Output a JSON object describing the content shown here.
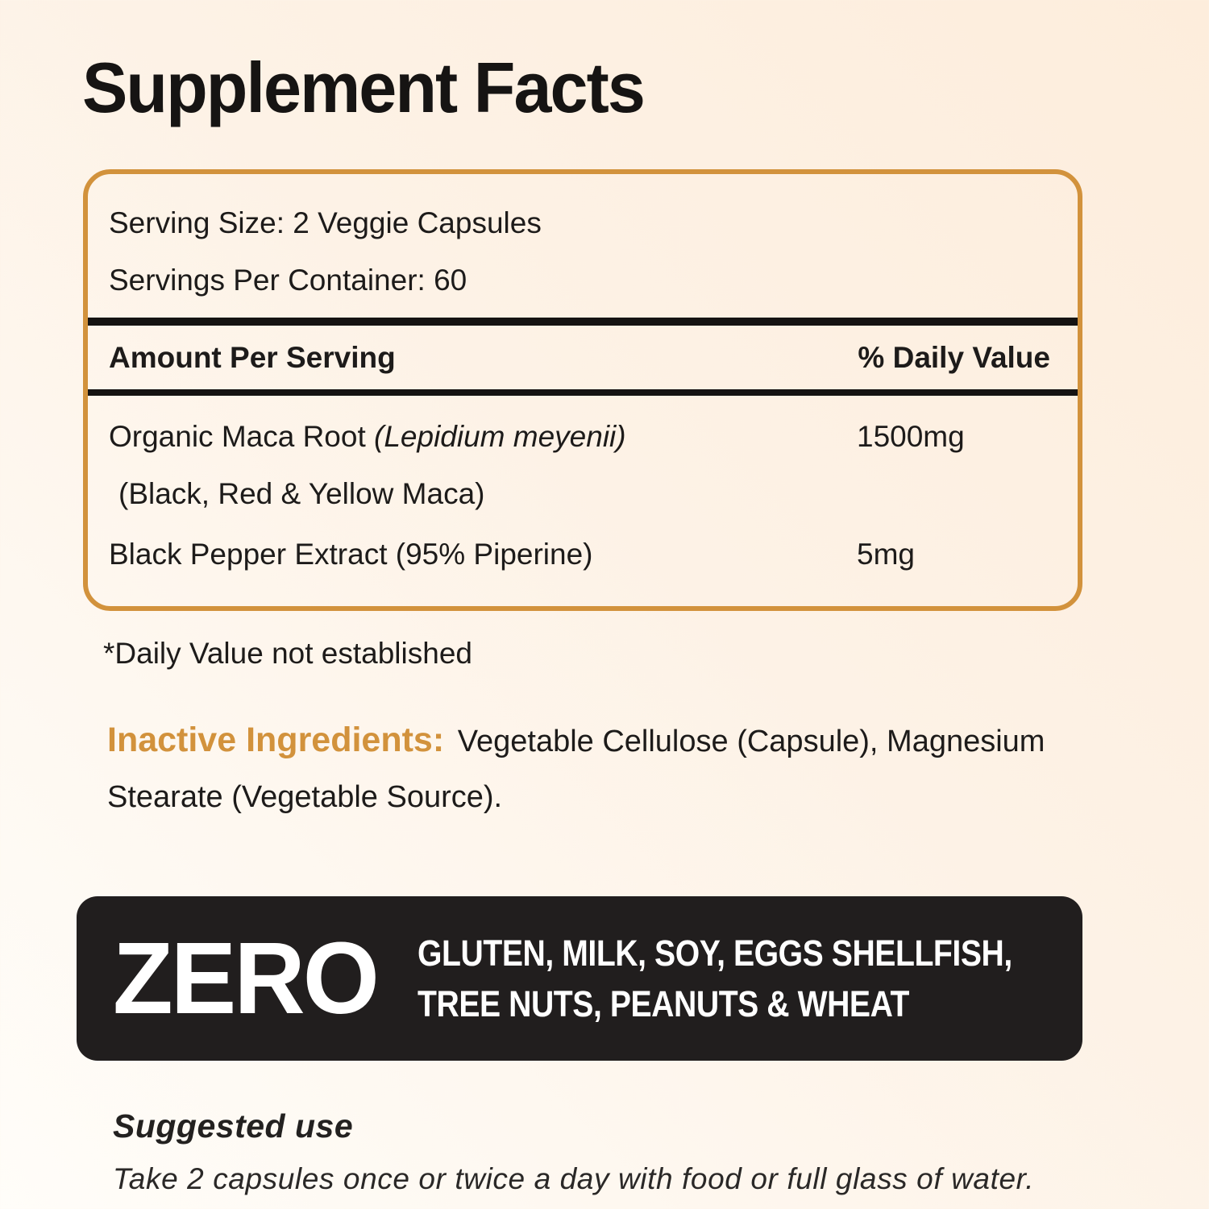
{
  "page": {
    "title": "Supplement Facts"
  },
  "colors": {
    "accent_orange": "#d2923c",
    "panel_dark": "#211e1e",
    "text_black": "#1d1b1a",
    "background_top_right": "#fdeddc",
    "background_bottom_left": "#fffdf9"
  },
  "facts_panel": {
    "serving_size": "Serving Size: 2 Veggie Capsules",
    "servings_per_container": "Servings Per Container: 60",
    "column_amount_header": "Amount Per Serving",
    "column_dv_header": "% Daily Value",
    "rows": [
      {
        "name": "Organic Maca Root ",
        "latin": "(Lepidium meyenii)",
        "amount": "1500mg"
      },
      {
        "name": "(Black, Red & Yellow Maca)",
        "latin": "",
        "amount": ""
      },
      {
        "name": "Black Pepper Extract (95% Piperine)",
        "latin": "",
        "amount": "5mg"
      }
    ]
  },
  "footnote": "*Daily Value not established",
  "inactive_ingredients": {
    "label": "Inactive Ingredients:",
    "text": " Vegetable Cellulose (Capsule), Magnesium Stearate (Vegetable Source)."
  },
  "allergen_banner": {
    "zero": "ZERO",
    "line1": "GLUTEN, MILK, SOY, EGGS SHELLFISH,",
    "line2": "TREE NUTS, PEANUTS & WHEAT"
  },
  "suggested_use": {
    "heading": "Suggested use",
    "body": "Take 2 capsules once or twice a day with food or full glass of water."
  }
}
